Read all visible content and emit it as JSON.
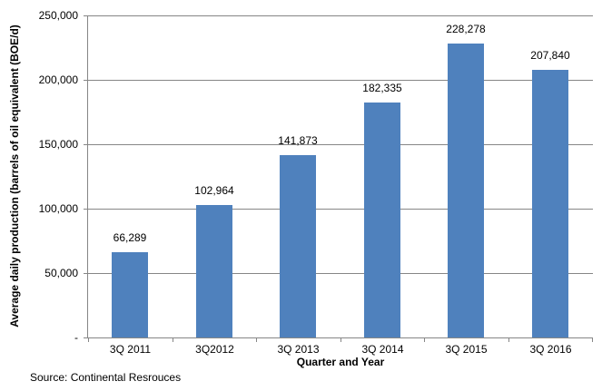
{
  "chart_data": {
    "type": "bar",
    "categories": [
      "3Q 2011",
      "3Q2012",
      "3Q 2013",
      "3Q 2014",
      "3Q 2015",
      "3Q 2016"
    ],
    "values": [
      66289,
      102964,
      141873,
      182335,
      228278,
      207840
    ],
    "value_labels": [
      "66,289",
      "102,964",
      "141,873",
      "182,335",
      "228,278",
      "207,840"
    ],
    "xlabel": "Quarter and Year",
    "ylabel": "Average daily production (barrels of oil equivalent (BOE/d)",
    "ylim": [
      0,
      250000
    ],
    "yticks": [
      0,
      50000,
      100000,
      150000,
      200000,
      250000
    ],
    "ytick_labels": [
      "-",
      "50,000",
      "100,000",
      "150,000",
      "200,000",
      "250,000"
    ],
    "grid": true,
    "legend": "none",
    "bar_color": "#4f81bd",
    "axis_color": "#868686",
    "gridline_color": "#868686"
  },
  "source_note": "Source: Continental Resrouces"
}
